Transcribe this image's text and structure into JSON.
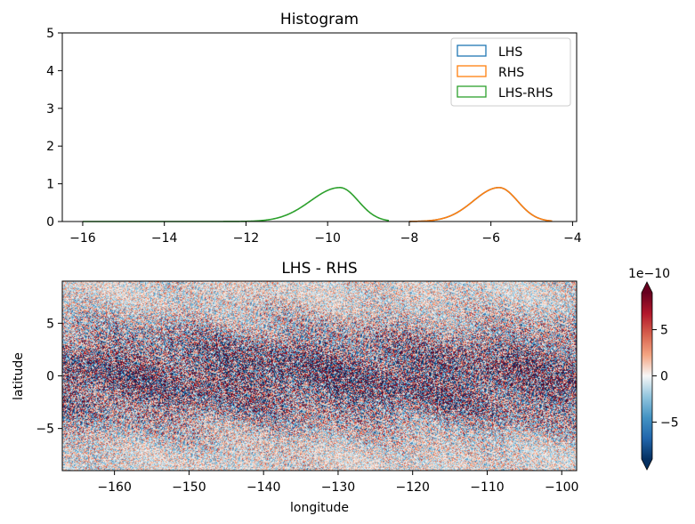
{
  "chart_data": [
    {
      "type": "line",
      "title": "Histogram",
      "xlabel": "",
      "ylabel": "",
      "xlim": [
        -16.5,
        -3.9
      ],
      "ylim": [
        0,
        5
      ],
      "xticks": [
        -16,
        -14,
        -12,
        -10,
        -8,
        -6,
        -4
      ],
      "xtick_labels": [
        "−16",
        "−14",
        "−12",
        "−10",
        "−8",
        "−6",
        "−4"
      ],
      "yticks": [
        0,
        1,
        2,
        3,
        4,
        5
      ],
      "ytick_labels": [
        "0",
        "1",
        "2",
        "3",
        "4",
        "5"
      ],
      "legend": {
        "placement": "top-right",
        "entries": [
          "LHS",
          "RHS",
          "LHS-RHS"
        ]
      },
      "series": [
        {
          "name": "LHS",
          "color": "#1f77b4",
          "peak_x": -5.8,
          "peak_y": 0.9,
          "sigma": 0.45,
          "skew_left": 1.4,
          "range": [
            -8.0,
            -4.5
          ]
        },
        {
          "name": "RHS",
          "color": "#ff7f0e",
          "peak_x": -5.8,
          "peak_y": 0.9,
          "sigma": 0.45,
          "skew_left": 1.4,
          "range": [
            -8.0,
            -4.5
          ]
        },
        {
          "name": "LHS-RHS",
          "color": "#2ca02c",
          "peak_x": -9.7,
          "peak_y": 0.9,
          "sigma": 0.45,
          "skew_left": 1.6,
          "range": [
            -16.0,
            -8.5
          ]
        }
      ]
    },
    {
      "type": "heatmap",
      "title": "LHS - RHS",
      "xlabel": "longitude",
      "ylabel": "latitude",
      "xlim": [
        -167,
        -98
      ],
      "ylim": [
        -9,
        9
      ],
      "xticks": [
        -160,
        -150,
        -140,
        -130,
        -120,
        -110,
        -100
      ],
      "xtick_labels": [
        "−160",
        "−150",
        "−140",
        "−130",
        "−120",
        "−110",
        "−100"
      ],
      "yticks": [
        -5,
        0,
        5
      ],
      "ytick_labels": [
        "−5",
        "0",
        "5"
      ],
      "colormap": "RdBu_r",
      "colorbar": {
        "vmin": -9,
        "vmax": 9,
        "ticks": [
          -5,
          0,
          5
        ],
        "tick_labels": [
          "−5",
          "0",
          "5"
        ],
        "scale_label": "1e−10",
        "extend": "both"
      },
      "colors": {
        "dark_red": "#67001f",
        "red": "#d6604d",
        "light_red": "#fddbc7",
        "white": "#f7f7f7",
        "light_blue": "#d1e5f0",
        "blue": "#4393c3",
        "dark_blue": "#053061"
      }
    }
  ]
}
